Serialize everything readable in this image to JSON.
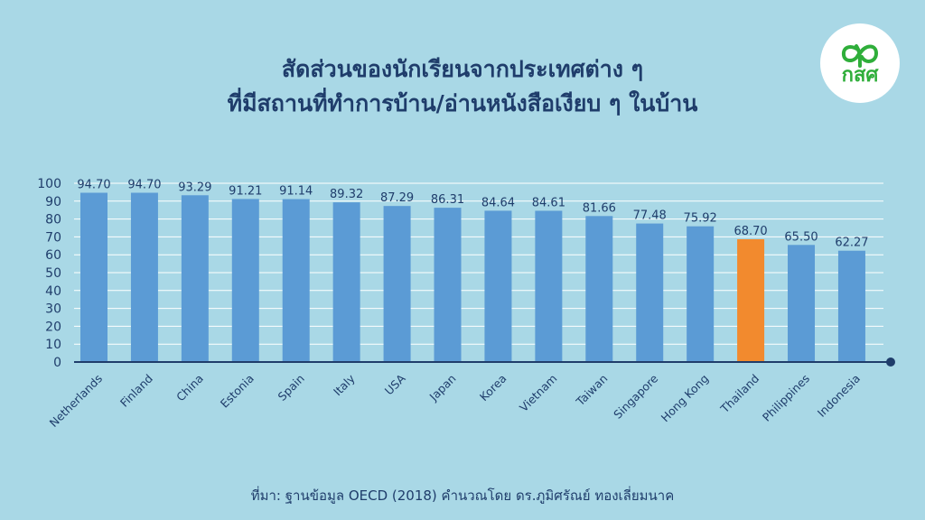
{
  "title": {
    "line1": "สัดส่วนของนักเรียนจากประเทศต่าง ๆ",
    "line2": "ที่มีสถานที่ทำการบ้าน/อ่านหนังสือเงียบ ๆ ในบ้าน"
  },
  "logo": {
    "text": "กสศ",
    "icon": "sprout-logo-icon",
    "color": "#2fae3a"
  },
  "source": "ที่มา: ฐานข้อมูล OECD (2018) คำนวณโดย ดร.ภูมิศรัณย์ ทองเลี่ยมนาค",
  "colors": {
    "background": "#a9d8e6",
    "bar": "#5b9bd5",
    "highlight": "#f28a2e",
    "axis": "#1f3d6b",
    "grid": "#ffffff"
  },
  "chart_data": {
    "type": "bar",
    "title": "",
    "xlabel": "",
    "ylabel": "",
    "ylim": [
      0,
      100
    ],
    "yticks": [
      0,
      10,
      20,
      30,
      40,
      50,
      60,
      70,
      80,
      90,
      100
    ],
    "grid": true,
    "highlight_category": "Thailand",
    "categories": [
      "Netherlands",
      "Finland",
      "China",
      "Estonia",
      "Spain",
      "Italy",
      "USA",
      "Japan",
      "Korea",
      "Vietnam",
      "Taiwan",
      "Singapore",
      "Hong Kong",
      "Thailand",
      "Philippines",
      "Indonesia"
    ],
    "values": [
      94.7,
      94.7,
      93.29,
      91.21,
      91.14,
      89.32,
      87.29,
      86.31,
      84.64,
      84.61,
      81.66,
      77.48,
      75.92,
      68.7,
      65.5,
      62.27
    ],
    "value_labels": [
      "94.70",
      "94.70",
      "93.29",
      "91.21",
      "91.14",
      "89.32",
      "87.29",
      "86.31",
      "84.64",
      "84.61",
      "81.66",
      "77.48",
      "75.92",
      "68.70",
      "65.50",
      "62.27"
    ]
  }
}
